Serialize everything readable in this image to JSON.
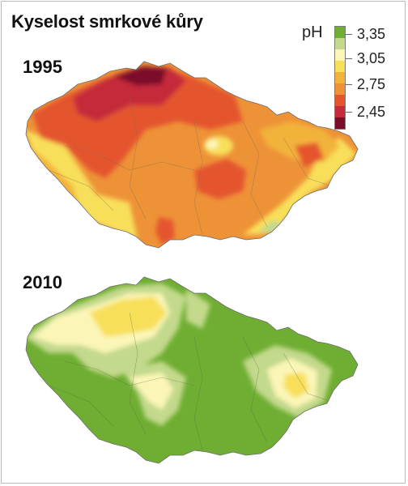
{
  "title": "Kyselost smrkové kůry",
  "maps": [
    {
      "year": "1995"
    },
    {
      "year": "2010"
    }
  ],
  "legend": {
    "unit": "pH",
    "ticks": [
      "3,35",
      "3,05",
      "2,75",
      "2,45"
    ],
    "colors": [
      "#6fae32",
      "#c3d98c",
      "#fbf6b7",
      "#f8df5a",
      "#f2b33a",
      "#ee9237",
      "#e4542e",
      "#c52b3b",
      "#7b0d2b"
    ]
  },
  "palette": {
    "green": "#6fae32",
    "light_green": "#c3d98c",
    "pale_yellow": "#fbf6b7",
    "yellow": "#f8df5a",
    "gold": "#f2b33a",
    "orange": "#ee9237",
    "red": "#e4542e",
    "crimson": "#c52b3b",
    "dark_red": "#7b0d2b"
  }
}
